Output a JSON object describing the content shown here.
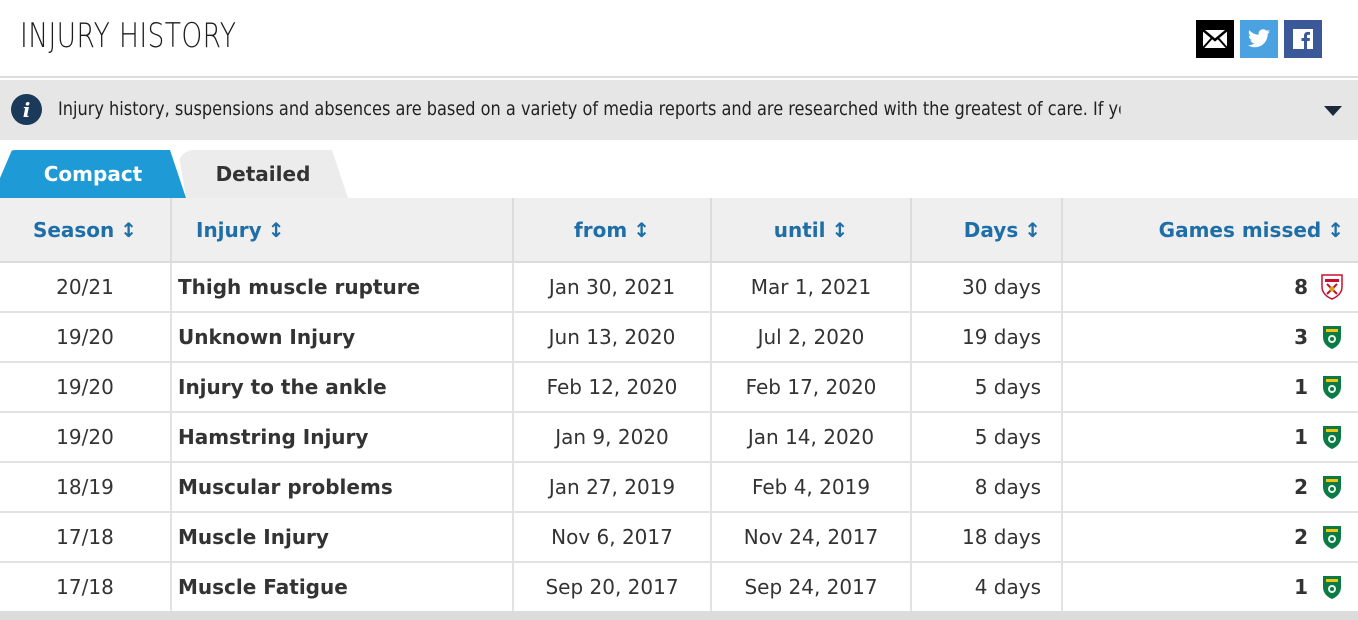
{
  "header": {
    "title": "INJURY HISTORY",
    "share": [
      {
        "name": "mail",
        "icon": "envelope-icon"
      },
      {
        "name": "twitter",
        "icon": "twitter-icon"
      },
      {
        "name": "facebook",
        "icon": "facebook-icon"
      }
    ]
  },
  "info": {
    "icon": "info-icon",
    "text": "Injury history, suspensions and absences are based on a variety of media reports and are researched with the greatest of care. If you should n..."
  },
  "tabs": {
    "compact_label": "Compact",
    "detailed_label": "Detailed",
    "active": "Compact"
  },
  "table": {
    "sort_glyph": "↕",
    "headers": {
      "season": "Season",
      "injury": "Injury",
      "from": "from",
      "until": "until",
      "days": "Days",
      "games": "Games missed"
    },
    "rows": [
      {
        "season": "20/21",
        "injury": "Thigh muscle rupture",
        "from": "Jan 30, 2021",
        "until": "Mar 1, 2021",
        "days": "30 days",
        "games": "8",
        "club_crest": "sevilla-crest-icon"
      },
      {
        "season": "19/20",
        "injury": "Unknown Injury",
        "from": "Jun 13, 2020",
        "until": "Jul 2, 2020",
        "days": "19 days",
        "games": "3",
        "club_crest": "sporting-crest-icon"
      },
      {
        "season": "19/20",
        "injury": "Injury to the ankle",
        "from": "Feb 12, 2020",
        "until": "Feb 17, 2020",
        "days": "5 days",
        "games": "1",
        "club_crest": "sporting-crest-icon"
      },
      {
        "season": "19/20",
        "injury": "Hamstring Injury",
        "from": "Jan 9, 2020",
        "until": "Jan 14, 2020",
        "days": "5 days",
        "games": "1",
        "club_crest": "sporting-crest-icon"
      },
      {
        "season": "18/19",
        "injury": "Muscular problems",
        "from": "Jan 27, 2019",
        "until": "Feb 4, 2019",
        "days": "8 days",
        "games": "2",
        "club_crest": "sporting-crest-icon"
      },
      {
        "season": "17/18",
        "injury": "Muscle Injury",
        "from": "Nov 6, 2017",
        "until": "Nov 24, 2017",
        "days": "18 days",
        "games": "2",
        "club_crest": "sporting-crest-icon"
      },
      {
        "season": "17/18",
        "injury": "Muscle Fatigue",
        "from": "Sep 20, 2017",
        "until": "Sep 24, 2017",
        "days": "4 days",
        "games": "1",
        "club_crest": "sporting-crest-icon"
      }
    ]
  },
  "colors": {
    "accent_blue": "#1e9ad6",
    "header_link": "#1e6fa8",
    "info_bg": "#e6e6e6",
    "info_icon": "#1b3958"
  }
}
